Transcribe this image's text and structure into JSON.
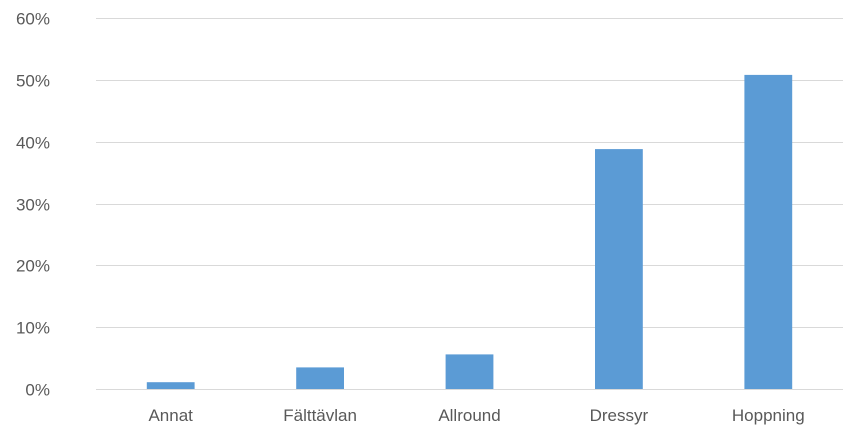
{
  "chart_data": {
    "type": "bar",
    "categories": [
      "Annat",
      "Fälttävlan",
      "Allround",
      "Dressyr",
      "Hoppning"
    ],
    "values": [
      1.1,
      3.5,
      5.6,
      38.8,
      50.8
    ],
    "ylim": [
      0,
      60
    ],
    "yticks": [
      0,
      10,
      20,
      30,
      40,
      50,
      60
    ],
    "ytick_labels": [
      "0%",
      "10%",
      "20%",
      "30%",
      "40%",
      "50%",
      "60%"
    ],
    "grid": true,
    "legend": "none",
    "title": "",
    "xlabel": "",
    "ylabel": "",
    "bar_color": "#5b9bd5",
    "grid_color": "#d9d9d9",
    "text_color": "#595959"
  }
}
